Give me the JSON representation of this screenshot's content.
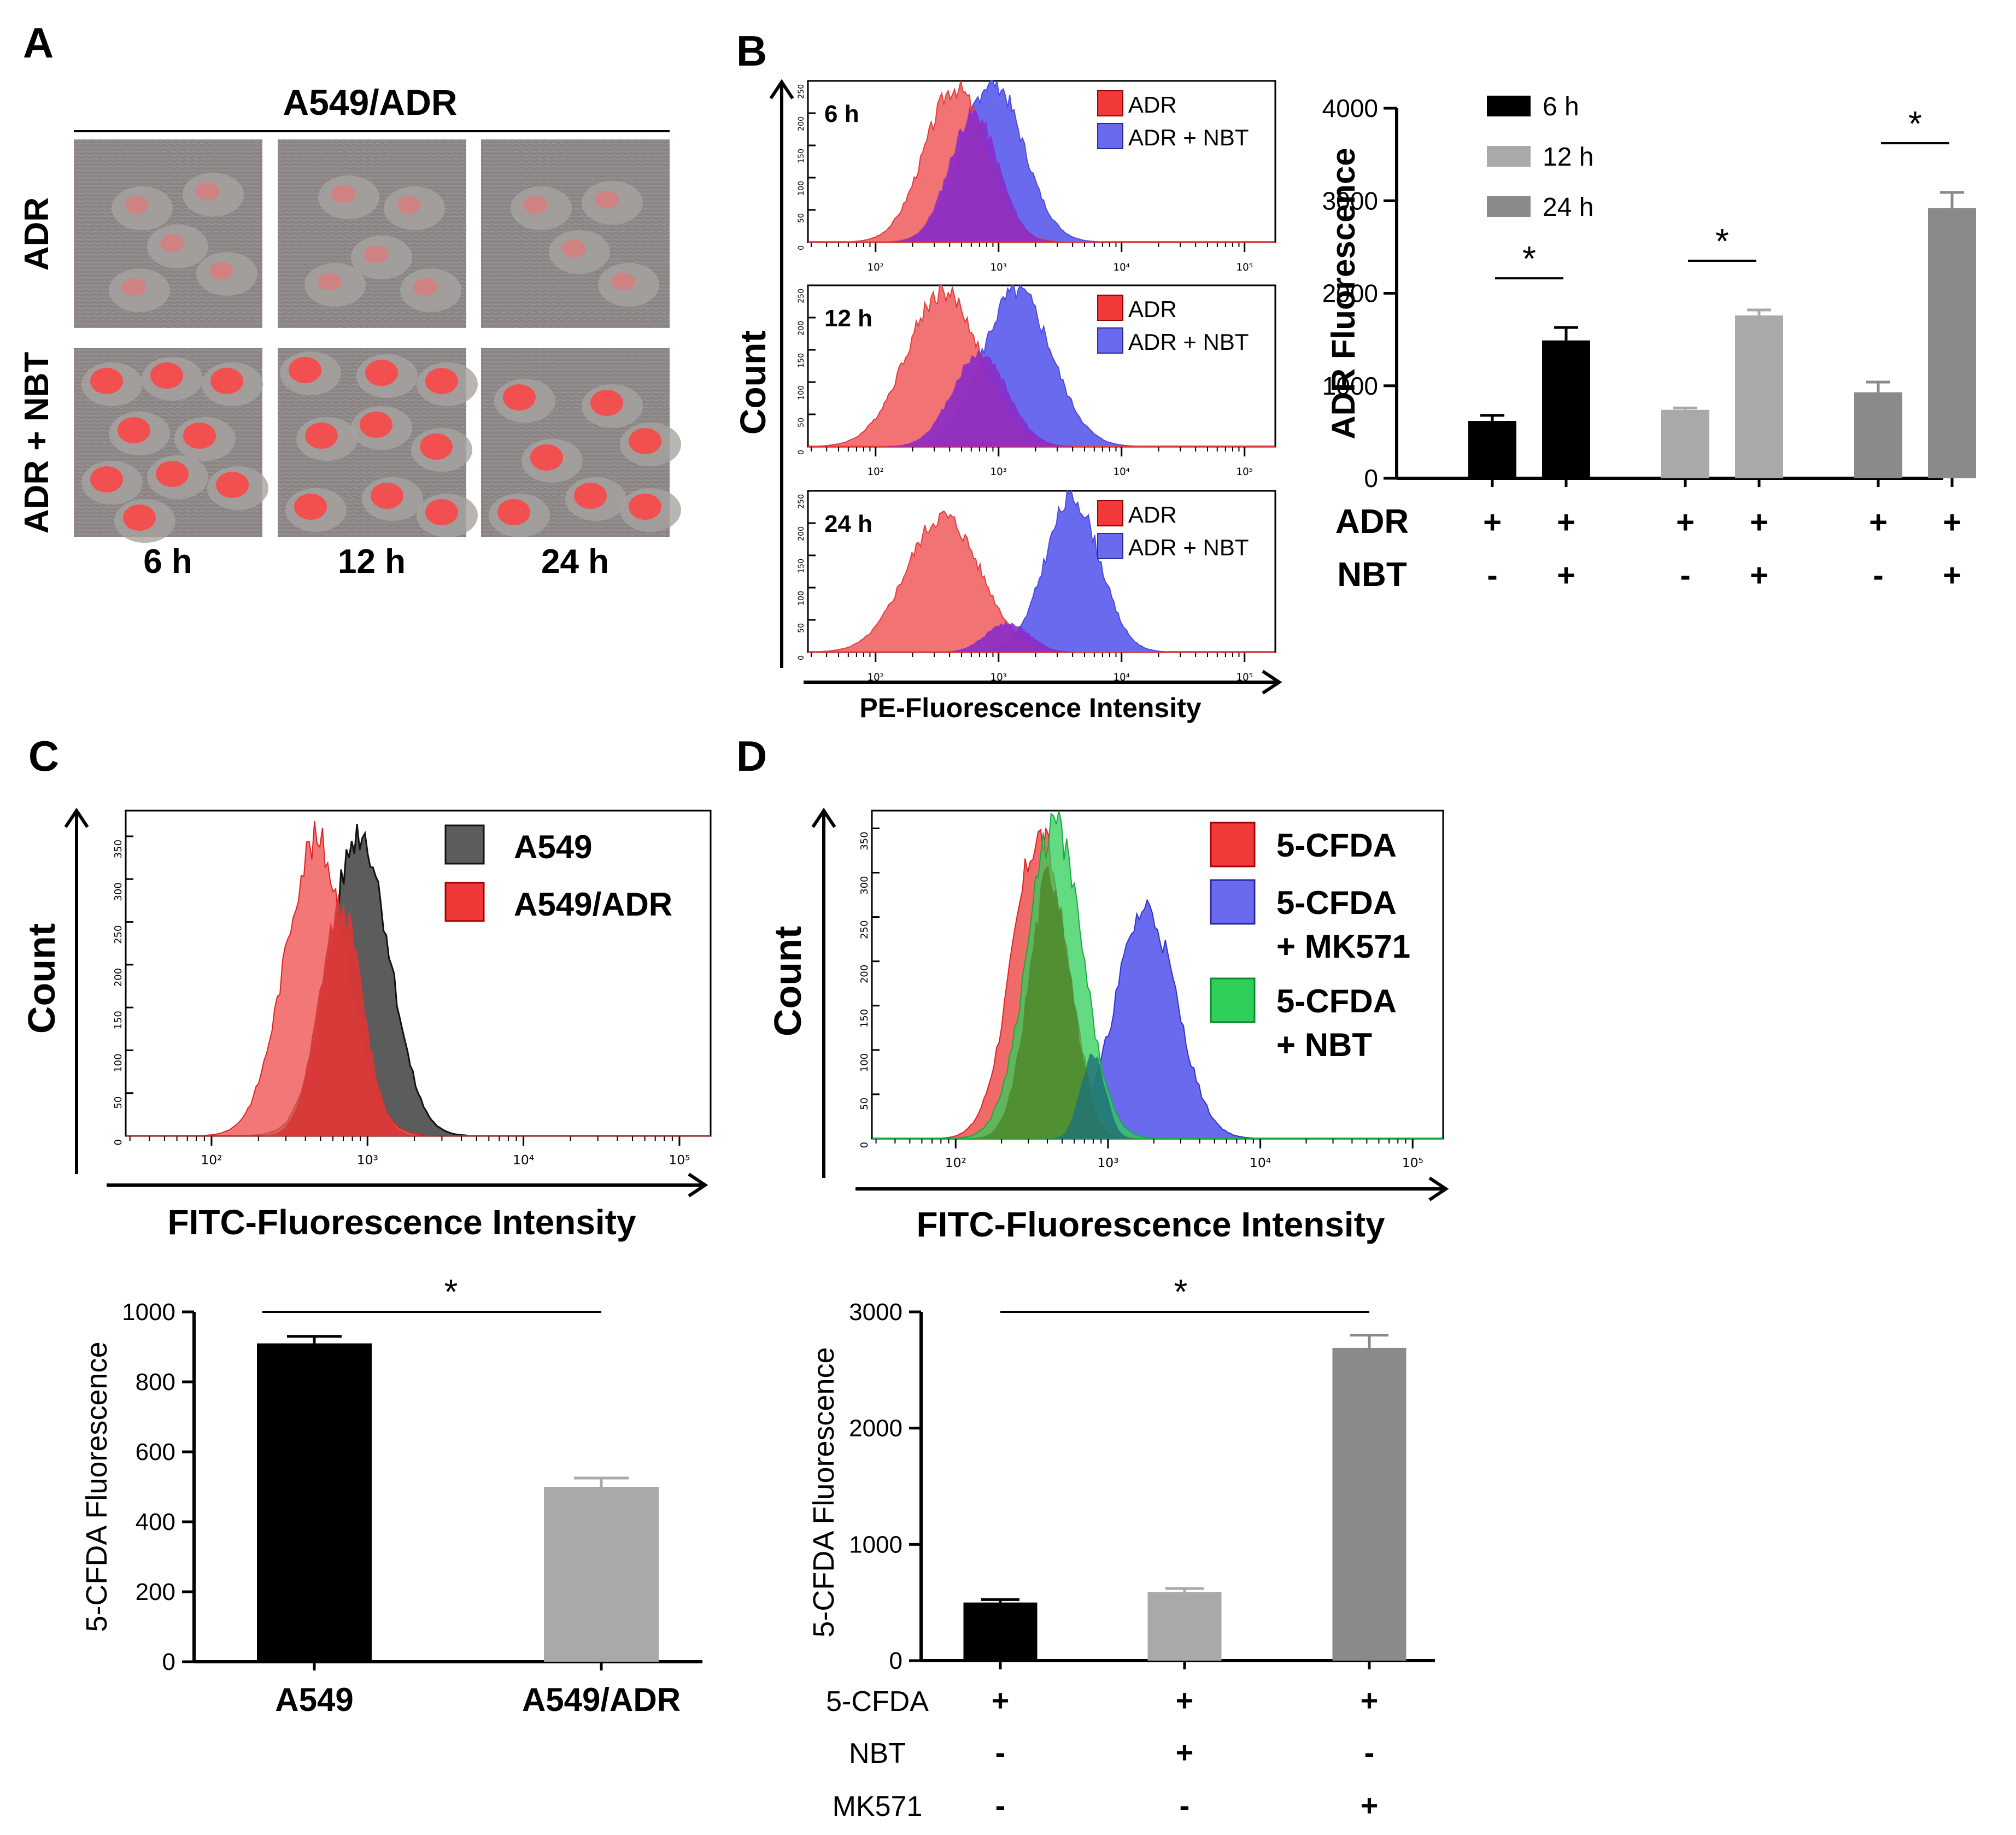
{
  "panel_letters": [
    "A",
    "B",
    "C",
    "D"
  ],
  "panel_a": {
    "title": "A549/ADR",
    "row_labels": [
      "ADR",
      "ADR + NBT"
    ],
    "col_labels": [
      "6 h",
      "12 h",
      "24 h"
    ]
  },
  "chart_data": [
    {
      "id": "B-histograms",
      "type": "area",
      "title": "",
      "xlabel": "PE-Fluorescence Intensity",
      "ylabel": "Count",
      "xscale": "log",
      "x_ticks": [
        "10²",
        "10³",
        "10⁴",
        "10⁵"
      ],
      "y_ticks": [
        "0",
        "50",
        "100",
        "150",
        "200",
        "250"
      ],
      "legend": [
        "ADR",
        "ADR + NBT"
      ],
      "colors": {
        "ADR": "#f05a5a",
        "ADR + NBT": "#6a6aee",
        "overlap": "#8a2cc8"
      },
      "panels": [
        {
          "label": "6 h",
          "series": [
            {
              "name": "ADR",
              "peak_log": 2.65,
              "sd": 0.25,
              "max": 240
            },
            {
              "name": "ADR + NBT",
              "peak_log": 2.95,
              "sd": 0.25,
              "max": 250
            }
          ]
        },
        {
          "label": "12 h",
          "series": [
            {
              "name": "ADR",
              "peak_log": 2.55,
              "sd": 0.3,
              "max": 240
            },
            {
              "name": "ADR + NBT",
              "peak_log": 3.15,
              "sd": 0.28,
              "max": 240
            }
          ]
        },
        {
          "label": "24 h",
          "series": [
            {
              "name": "ADR",
              "peak_log": 2.55,
              "sd": 0.3,
              "max": 210
            },
            {
              "name": "ADR + NBT",
              "peak_log": 3.6,
              "sd": 0.22,
              "max": 240
            }
          ]
        }
      ]
    },
    {
      "id": "B-bar",
      "type": "bar",
      "ylabel": "ADR Fluorescence",
      "ylim": [
        0,
        4000
      ],
      "y_ticks": [
        0,
        1000,
        2000,
        3000,
        4000
      ],
      "legend": [
        "6 h",
        "12 h",
        "24 h"
      ],
      "colors": [
        "#000000",
        "#a9a9ab",
        "#8a8a8c"
      ],
      "row_labels": [
        "ADR",
        "NBT"
      ],
      "groups": [
        {
          "name": "6 h",
          "bars": [
            {
              "value": 620,
              "err": 60,
              "ADR": "+",
              "NBT": "-"
            },
            {
              "value": 1490,
              "err": 140,
              "ADR": "+",
              "NBT": "+"
            }
          ],
          "sig": "*"
        },
        {
          "name": "12 h",
          "bars": [
            {
              "value": 740,
              "err": 20,
              "ADR": "+",
              "NBT": "-"
            },
            {
              "value": 1760,
              "err": 60,
              "ADR": "+",
              "NBT": "+"
            }
          ],
          "sig": "*"
        },
        {
          "name": "24 h",
          "bars": [
            {
              "value": 930,
              "err": 110,
              "ADR": "+",
              "NBT": "-"
            },
            {
              "value": 2920,
              "err": 170,
              "ADR": "+",
              "NBT": "+"
            }
          ],
          "sig": "*"
        }
      ]
    },
    {
      "id": "C-histogram",
      "type": "area",
      "xlabel": "FITC-Fluorescence Intensity",
      "ylabel": "Count",
      "xscale": "log",
      "x_ticks": [
        "10²",
        "10³",
        "10⁴",
        "10⁵"
      ],
      "y_ticks": [
        "0",
        "50",
        "100",
        "150",
        "200",
        "250",
        "300",
        "350"
      ],
      "legend": [
        "A549",
        "A549/ADR"
      ],
      "colors": {
        "A549": "#5c5c5c",
        "A549/ADR": "#f06060",
        "overlap": "#d83838"
      },
      "series": [
        {
          "name": "A549",
          "peak_log": 2.95,
          "sd": 0.19,
          "max": 355
        },
        {
          "name": "A549/ADR",
          "peak_log": 2.67,
          "sd": 0.2,
          "max": 345
        }
      ]
    },
    {
      "id": "C-bar",
      "type": "bar",
      "ylabel": "5-CFDA Fluorescence",
      "ylim": [
        0,
        1000
      ],
      "y_ticks": [
        0,
        200,
        400,
        600,
        800,
        1000
      ],
      "categories": [
        "A549",
        "A549/ADR"
      ],
      "values": [
        910,
        500
      ],
      "errors": [
        20,
        25
      ],
      "colors": [
        "#000000",
        "#a9a9ab"
      ],
      "sig": "*"
    },
    {
      "id": "D-histogram",
      "type": "area",
      "xlabel": "FITC-Fluorescence Intensity",
      "ylabel": "Count",
      "xscale": "log",
      "x_ticks": [
        "10²",
        "10³",
        "10⁴",
        "10⁵"
      ],
      "y_ticks": [
        "0",
        "50",
        "100",
        "150",
        "200",
        "250",
        "300",
        "350"
      ],
      "legend": [
        "5-CFDA",
        "5-CFDA\n+ MK571",
        "5-CFDA\n+ NBT"
      ],
      "colors": {
        "5-CFDA": "#f05a5a",
        "5-CFDA + MK571": "#6a6aee",
        "5-CFDA + NBT": "#2fcf5a"
      },
      "series": [
        {
          "name": "5-CFDA",
          "peak_log": 2.55,
          "sd": 0.18,
          "max": 340
        },
        {
          "name": "5-CFDA + MK571",
          "peak_log": 3.25,
          "sd": 0.2,
          "max": 260
        },
        {
          "name": "5-CFDA + NBT",
          "peak_log": 2.65,
          "sd": 0.18,
          "max": 355
        }
      ]
    },
    {
      "id": "D-bar",
      "type": "bar",
      "ylabel": "5-CFDA Fluorescence",
      "ylim": [
        0,
        3000
      ],
      "y_ticks": [
        0,
        1000,
        2000,
        3000
      ],
      "values": [
        500,
        590,
        2690
      ],
      "errors": [
        25,
        30,
        110
      ],
      "colors": [
        "#000000",
        "#a9a9ab",
        "#8a8a8c"
      ],
      "row_labels": [
        "5-CFDA",
        "NBT",
        "MK571"
      ],
      "rows": [
        [
          "+",
          "+",
          "+"
        ],
        [
          "-",
          "+",
          "-"
        ],
        [
          "-",
          "-",
          "+"
        ]
      ],
      "sig": "*"
    }
  ]
}
